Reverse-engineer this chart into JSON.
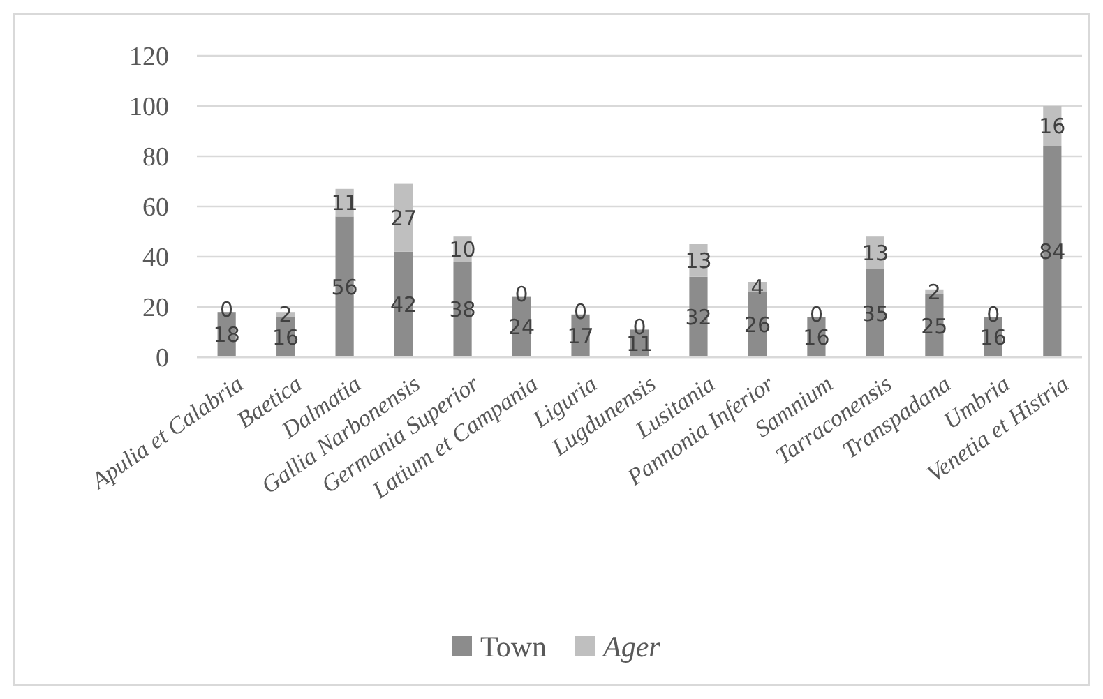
{
  "chart_data": {
    "type": "bar",
    "stacked": true,
    "categories": [
      "Apulia et Calabria",
      "Baetica",
      "Dalmatia",
      "Gallia Narbonensis",
      "Germania Superior",
      "Latium et Campania",
      "Liguria",
      "Lugdunensis",
      "Lusitania",
      "Pannonia Inferior",
      "Samnium",
      "Tarraconensis",
      "Transpadana",
      "Umbria",
      "Venetia et Histria"
    ],
    "series": [
      {
        "name": "Town",
        "color": "#8c8c8c",
        "values": [
          18,
          16,
          56,
          42,
          38,
          24,
          17,
          11,
          32,
          26,
          16,
          35,
          25,
          16,
          84
        ]
      },
      {
        "name": "Ager",
        "color": "#bfbfbf",
        "values": [
          0,
          2,
          11,
          27,
          10,
          0,
          0,
          0,
          13,
          4,
          0,
          13,
          2,
          0,
          16
        ]
      }
    ],
    "ylim": [
      0,
      120
    ],
    "yticks": [
      0,
      20,
      40,
      60,
      80,
      100,
      120
    ],
    "grid": "y",
    "legend": "bottom",
    "data_labels": true
  }
}
